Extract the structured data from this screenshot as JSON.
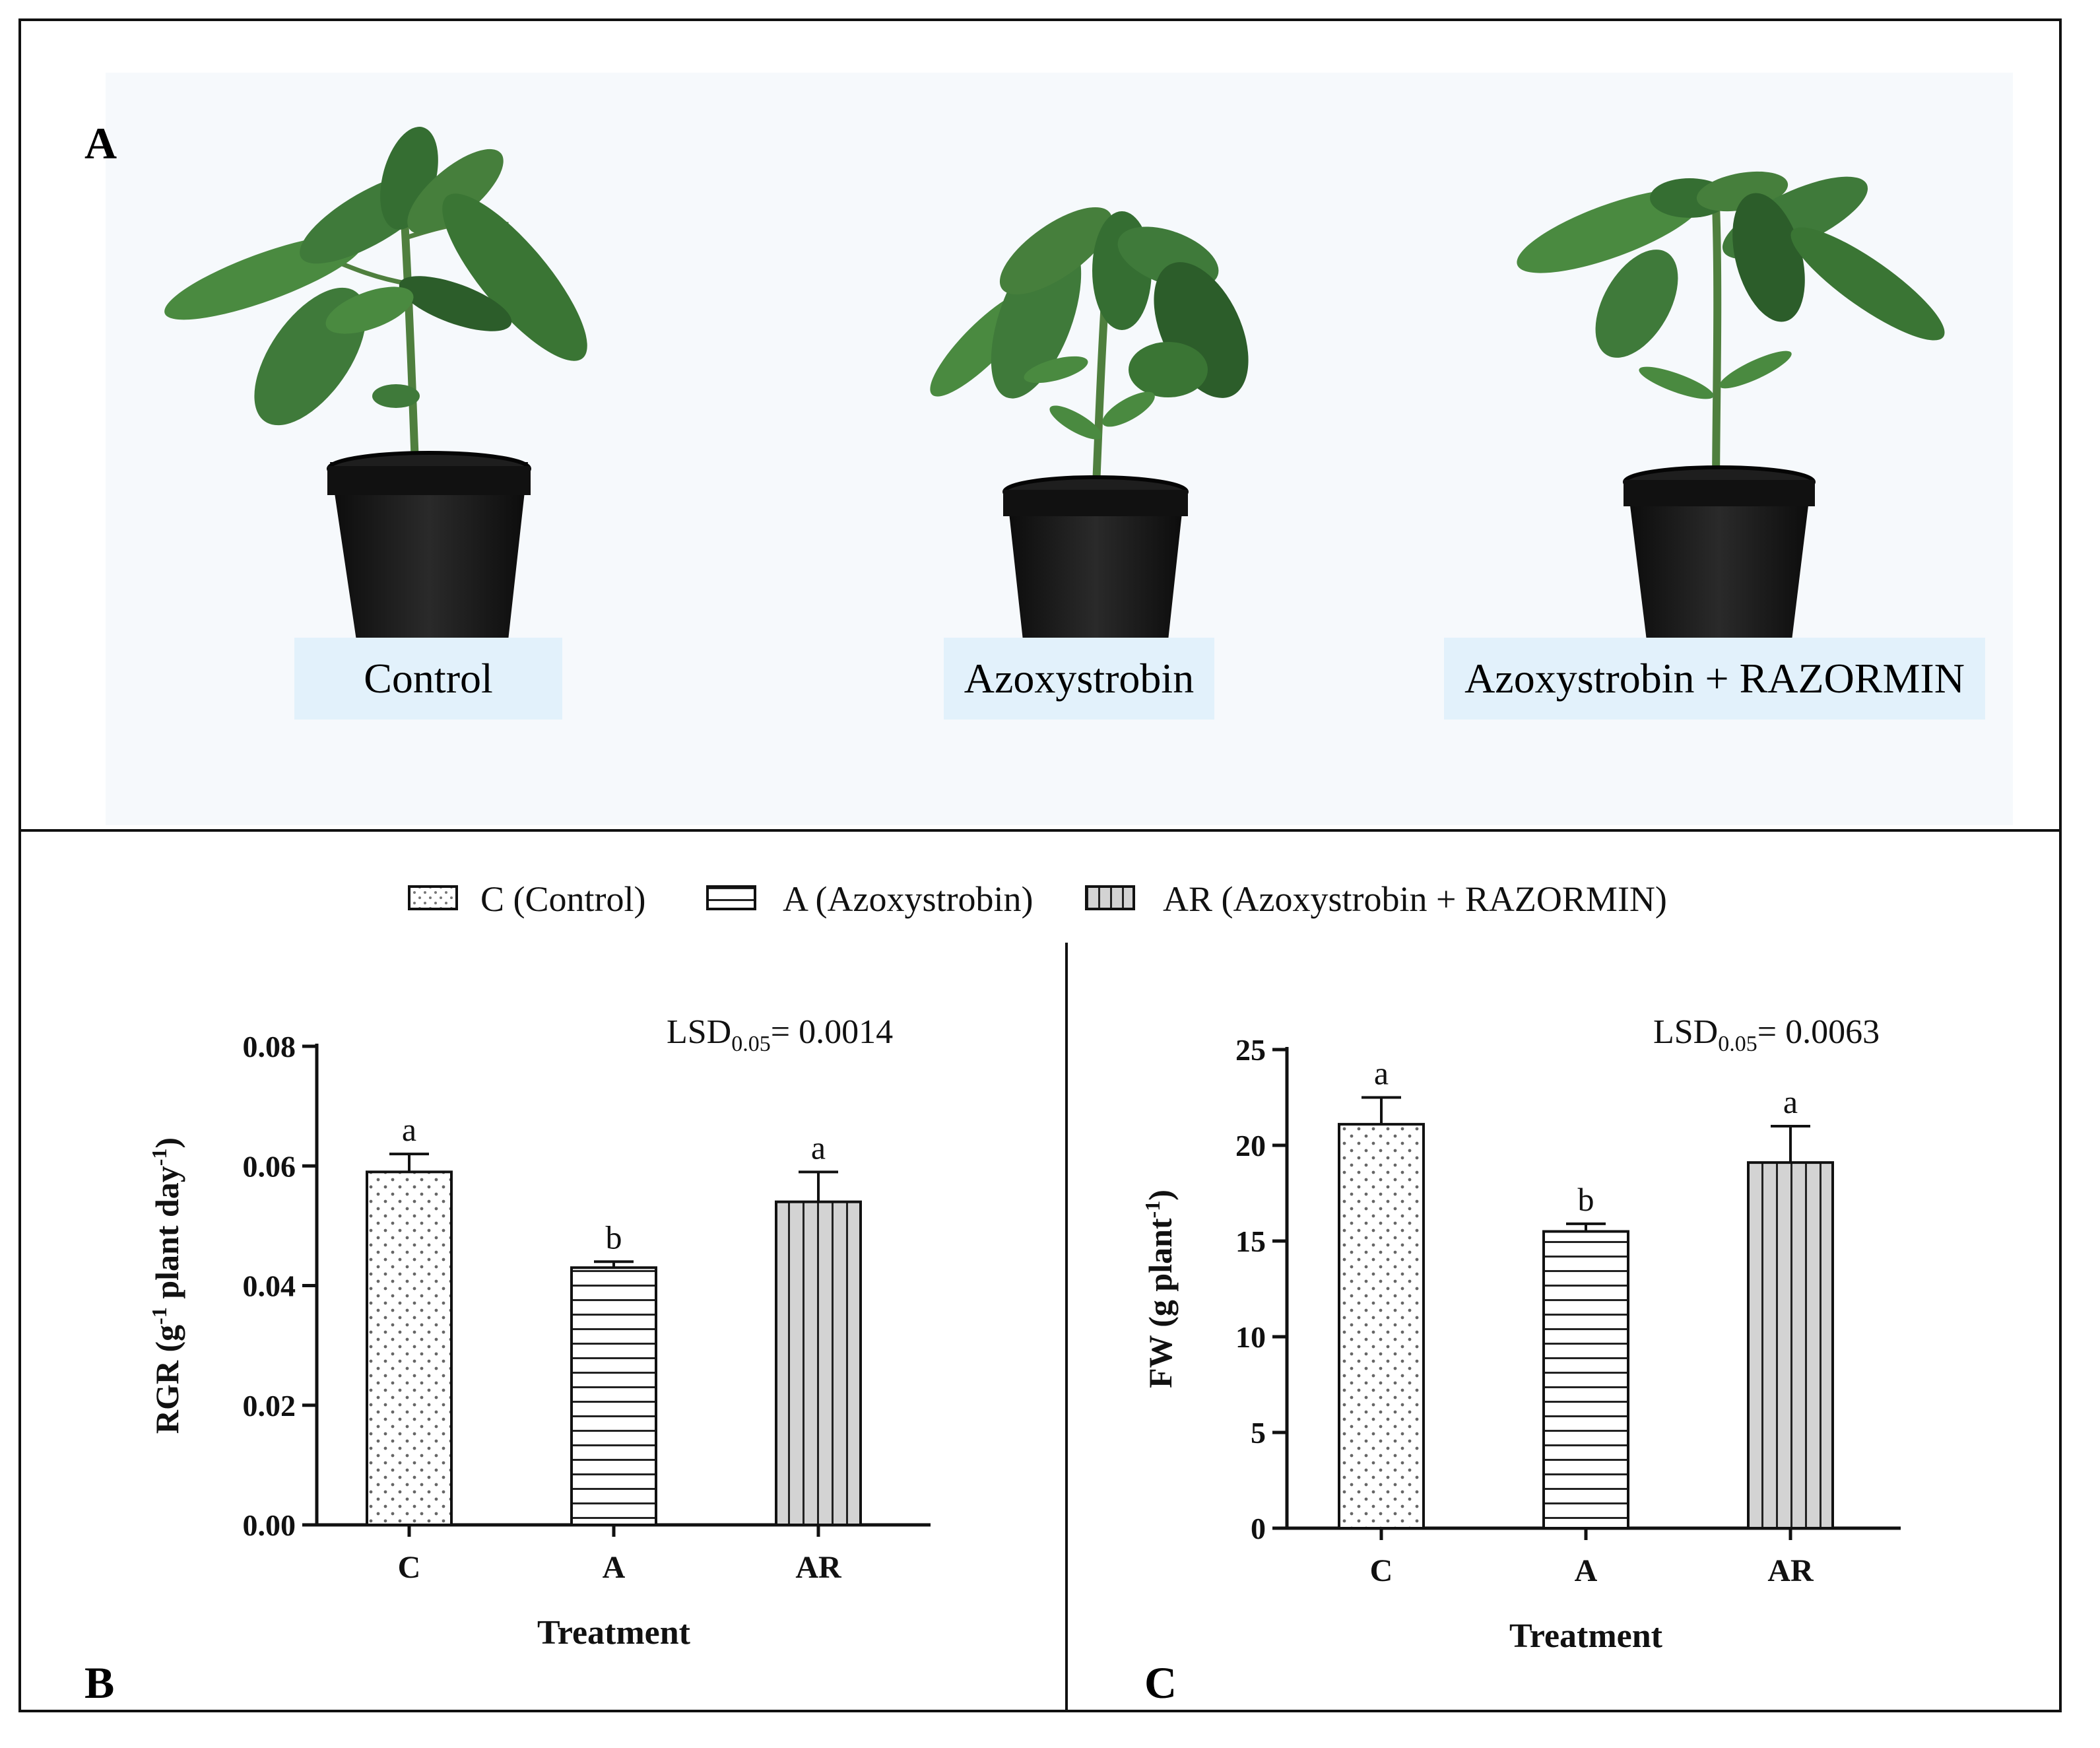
{
  "panels": {
    "a_label": "A",
    "b_label": "B",
    "c_label": "C"
  },
  "photo": {
    "captions": [
      "Control",
      "Azoxystrobin",
      "Azoxystrobin + RAZORMIN"
    ]
  },
  "legend": [
    {
      "key": "C",
      "label": "C (Control)",
      "pattern": "dots"
    },
    {
      "key": "A",
      "label": "A (Azoxystrobin)",
      "pattern": "hlines"
    },
    {
      "key": "AR",
      "label": "AR (Azoxystrobin + RAZORMIN)",
      "pattern": "vlines"
    }
  ],
  "colors": {
    "plant_leaf": "#3f7a3a",
    "plant_leaf_dark": "#2c5d2a",
    "pot": "#121212",
    "caption_bg": "#e2f1fb",
    "bar_ar_fill": "#d3d3d3"
  },
  "chart_data": [
    {
      "type": "bar",
      "panel": "B",
      "categories": [
        "C",
        "A",
        "AR"
      ],
      "values": [
        0.059,
        0.043,
        0.054
      ],
      "errors": [
        0.003,
        0.001,
        0.005
      ],
      "significance": [
        "a",
        "b",
        "a"
      ],
      "patterns": [
        "dots",
        "hlines",
        "vlines"
      ],
      "ylim": [
        0,
        0.08
      ],
      "yticks": [
        0,
        0.02,
        0.04,
        0.06,
        0.08
      ],
      "yticklabels": [
        "0.00",
        "0.02",
        "0.04",
        "0.06",
        "0.08"
      ],
      "xlabel": "Treatment",
      "ylabel_main": "RGR (g",
      "ylabel_sup1": "-1",
      "ylabel_mid": " plant day",
      "ylabel_sup2": "-1",
      "ylabel_end": ")",
      "lsd_prefix": "LSD",
      "lsd_sub": "0.05",
      "lsd_value": "= 0.0014"
    },
    {
      "type": "bar",
      "panel": "C",
      "categories": [
        "C",
        "A",
        "AR"
      ],
      "values": [
        21.1,
        15.5,
        19.1
      ],
      "errors": [
        1.4,
        0.4,
        1.9
      ],
      "significance": [
        "a",
        "b",
        "a"
      ],
      "patterns": [
        "dots",
        "hlines",
        "vlines"
      ],
      "ylim": [
        0,
        25
      ],
      "yticks": [
        0,
        5,
        10,
        15,
        20,
        25
      ],
      "yticklabels": [
        "0",
        "5",
        "10",
        "15",
        "20",
        "25"
      ],
      "xlabel": "Treatment",
      "ylabel_main": "FW (g plant",
      "ylabel_sup1": "-1",
      "ylabel_mid": "",
      "ylabel_sup2": "",
      "ylabel_end": ")",
      "lsd_prefix": "LSD",
      "lsd_sub": "0.05",
      "lsd_value": "= 0.0063"
    }
  ]
}
